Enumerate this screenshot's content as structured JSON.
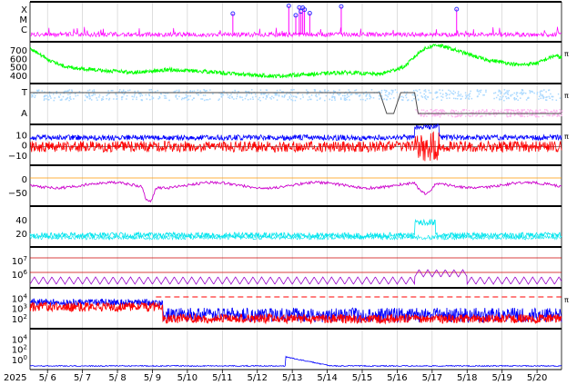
{
  "chart_data": {
    "type": "line",
    "x_start_label": "2025",
    "x_ticks": [
      "5/ 6",
      "5/ 7",
      "5/ 8",
      "5/ 9",
      "5/10",
      "5/11",
      "5/12",
      "5/13",
      "5/14",
      "5/15",
      "5/16",
      "5/17",
      "5/18",
      "5/19",
      "5/20"
    ],
    "panels": [
      {
        "id": "flare",
        "y_labels": [
          "X",
          "M",
          "C"
        ],
        "colors": {
          "line": "#ff00ff",
          "marker": "#3333ff"
        },
        "flare_marker_days": [
          5.8,
          7.4,
          7.6,
          7.7,
          7.75,
          7.8,
          7.85,
          8.0,
          8.9,
          12.2
        ],
        "right_label": ""
      },
      {
        "id": "wind",
        "y_labels": [
          "700",
          "600",
          "500",
          "400"
        ],
        "ylim": [
          300,
          750
        ],
        "colors": {
          "line": "#00ff00"
        },
        "keyframes_days": [
          [
            0,
            680
          ],
          [
            0.5,
            560
          ],
          [
            1,
            480
          ],
          [
            2,
            440
          ],
          [
            3,
            420
          ],
          [
            4,
            450
          ],
          [
            5,
            430
          ],
          [
            6,
            400
          ],
          [
            7,
            380
          ],
          [
            8,
            400
          ],
          [
            9,
            420
          ],
          [
            10,
            400
          ],
          [
            10.7,
            480
          ],
          [
            11.2,
            660
          ],
          [
            11.6,
            720
          ],
          [
            12,
            680
          ],
          [
            13,
            560
          ],
          [
            14,
            500
          ],
          [
            14.5,
            520
          ],
          [
            15,
            600
          ],
          [
            15.2,
            580
          ]
        ],
        "right_label": "π"
      },
      {
        "id": "sector",
        "y_labels": [
          "T",
          "A"
        ],
        "colors": {
          "t_dots": "#a9d8ff",
          "a_dots": "#ffb6f0",
          "line": "#4a4a4a"
        },
        "right_label": "π"
      },
      {
        "id": "imf",
        "y_labels": [
          "10",
          "0",
          "−10"
        ],
        "ylim": [
          -20,
          20
        ],
        "colors": {
          "bt": "#0000ff",
          "bz": "#ff0000",
          "zero": "#000000"
        },
        "right_label": "π"
      },
      {
        "id": "dst",
        "y_labels": [
          "0",
          "−50"
        ],
        "ylim": [
          -75,
          10
        ],
        "colors": {
          "line": "#cc00cc",
          "zero": "#ff9900"
        },
        "right_label": ""
      },
      {
        "id": "ae",
        "y_labels": [
          "40",
          "20"
        ],
        "ylim": [
          0,
          55
        ],
        "colors": {
          "line": "#00e5ee"
        },
        "right_label": ""
      },
      {
        "id": "electron",
        "y_labels": [
          "10^7",
          "10^6"
        ],
        "colors": {
          "line": "#9900cc",
          "threshold": "#cc0000"
        },
        "right_label": ""
      },
      {
        "id": "proton_low",
        "y_labels": [
          "10^4",
          "10^3",
          "10^2"
        ],
        "colors": {
          "p1": "#0000ff",
          "p2": "#ff0000",
          "threshold": "#ff0000"
        },
        "right_label": "π"
      },
      {
        "id": "proton_high",
        "y_labels": [
          "10^4",
          "10^2",
          "10^0"
        ],
        "colors": {
          "line": "#0000ff"
        },
        "right_label": ""
      }
    ]
  }
}
